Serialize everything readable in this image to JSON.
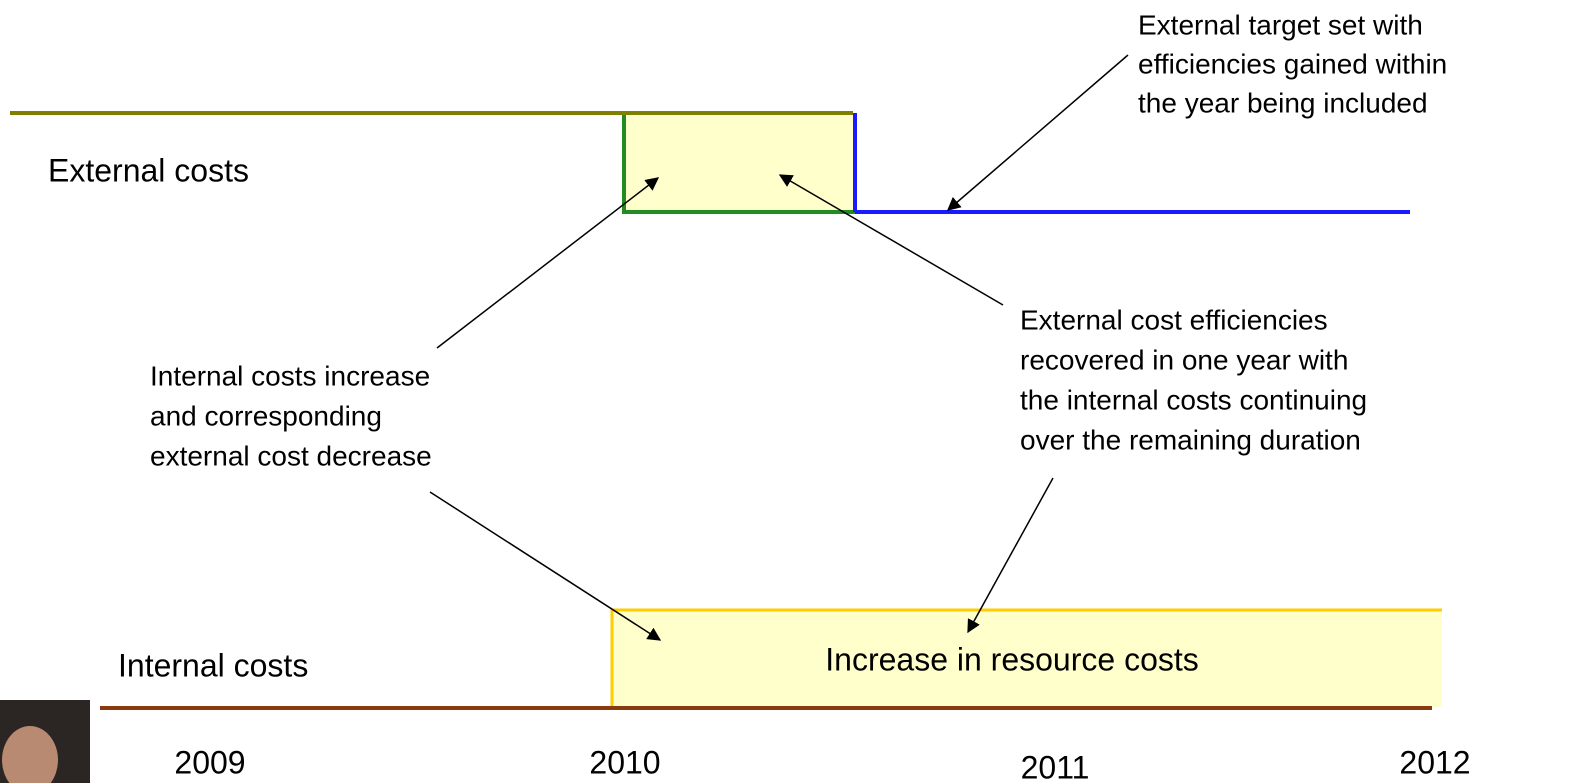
{
  "labels": {
    "external_costs": "External costs",
    "internal_costs": "Internal costs",
    "increase_box": "Increase in resource costs"
  },
  "annotations": {
    "external_target": [
      "External target set with",
      "efficiencies gained within",
      "the year being included"
    ],
    "external_efficiencies": [
      "External cost efficiencies",
      "recovered in one year with",
      "the internal costs continuing",
      "over the remaining duration"
    ],
    "internal_increase": [
      "Internal costs increase",
      "and corresponding",
      "external cost decrease"
    ]
  },
  "years": [
    "2009",
    "2010",
    "2011",
    "2012"
  ]
}
